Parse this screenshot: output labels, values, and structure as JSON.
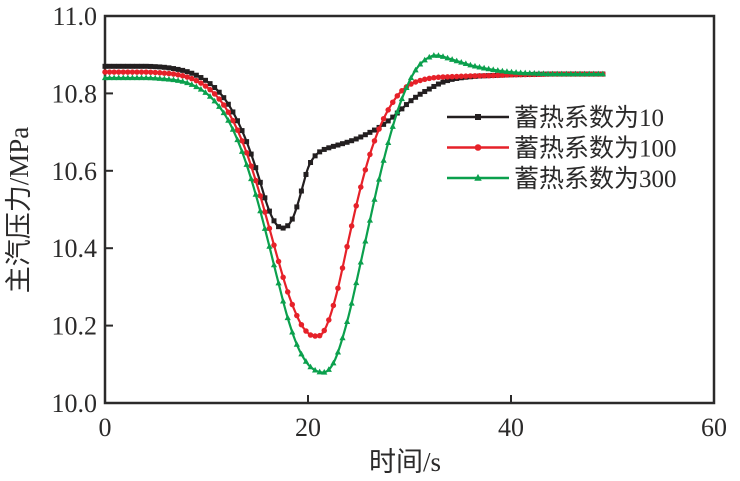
{
  "figure": {
    "background": "#ffffff",
    "frame_color": "#2b2a2a"
  },
  "chart_data": {
    "type": "line",
    "title": "",
    "xlabel": "时间/s",
    "ylabel": "主汽压力/MPa",
    "xlim": [
      0,
      60
    ],
    "ylim": [
      10.0,
      11.0
    ],
    "x_ticks": [
      0,
      20,
      40,
      60
    ],
    "x_tick_labels": [
      "0",
      "20",
      "40",
      "60"
    ],
    "y_ticks": [
      10.0,
      10.2,
      10.4,
      10.6,
      10.8,
      11.0
    ],
    "y_tick_labels": [
      "10.0",
      "10.2",
      "10.4",
      "10.6",
      "10.8",
      "11.0"
    ],
    "grid": false,
    "legend_position": "inside-upper-right",
    "series": [
      {
        "name": "蓄热系数为10",
        "color": "#231f20",
        "marker": "square",
        "points": [
          [
            0,
            10.87
          ],
          [
            2,
            10.87
          ],
          [
            4,
            10.87
          ],
          [
            5,
            10.869
          ],
          [
            6,
            10.867
          ],
          [
            7,
            10.863
          ],
          [
            8,
            10.857
          ],
          [
            9,
            10.847
          ],
          [
            10,
            10.832
          ],
          [
            11,
            10.81
          ],
          [
            12,
            10.778
          ],
          [
            13,
            10.732
          ],
          [
            14,
            10.672
          ],
          [
            15,
            10.596
          ],
          [
            16,
            10.51
          ],
          [
            16.5,
            10.478
          ],
          [
            17,
            10.458
          ],
          [
            17.3,
            10.453
          ],
          [
            17.6,
            10.452
          ],
          [
            18,
            10.458
          ],
          [
            18.5,
            10.478
          ],
          [
            19,
            10.515
          ],
          [
            19.5,
            10.562
          ],
          [
            20,
            10.607
          ],
          [
            20.5,
            10.632
          ],
          [
            21,
            10.646
          ],
          [
            21.5,
            10.654
          ],
          [
            22,
            10.659
          ],
          [
            23,
            10.667
          ],
          [
            24,
            10.675
          ],
          [
            25,
            10.685
          ],
          [
            26,
            10.698
          ],
          [
            27,
            10.712
          ],
          [
            28,
            10.731
          ],
          [
            29,
            10.754
          ],
          [
            30,
            10.778
          ],
          [
            31,
            10.797
          ],
          [
            32,
            10.812
          ],
          [
            33,
            10.826
          ],
          [
            34,
            10.835
          ],
          [
            35,
            10.84
          ],
          [
            36,
            10.843
          ],
          [
            37,
            10.845
          ],
          [
            38,
            10.846
          ],
          [
            40,
            10.848
          ],
          [
            42,
            10.849
          ],
          [
            44,
            10.85
          ],
          [
            46,
            10.85
          ],
          [
            49.3,
            10.85
          ]
        ]
      },
      {
        "name": "蓄热系数为100",
        "color": "#e62129",
        "marker": "circle",
        "points": [
          [
            0,
            10.855
          ],
          [
            2,
            10.855
          ],
          [
            4,
            10.855
          ],
          [
            5,
            10.854
          ],
          [
            6,
            10.852
          ],
          [
            7,
            10.849
          ],
          [
            8,
            10.843
          ],
          [
            9,
            10.833
          ],
          [
            10,
            10.817
          ],
          [
            11,
            10.793
          ],
          [
            12,
            10.758
          ],
          [
            13,
            10.708
          ],
          [
            14,
            10.643
          ],
          [
            15,
            10.562
          ],
          [
            16,
            10.47
          ],
          [
            17,
            10.375
          ],
          [
            18,
            10.287
          ],
          [
            19,
            10.22
          ],
          [
            19.5,
            10.196
          ],
          [
            20,
            10.181
          ],
          [
            20.5,
            10.173
          ],
          [
            21,
            10.173
          ],
          [
            21.5,
            10.183
          ],
          [
            22,
            10.211
          ],
          [
            22.5,
            10.252
          ],
          [
            23,
            10.302
          ],
          [
            24,
            10.422
          ],
          [
            25,
            10.537
          ],
          [
            26,
            10.634
          ],
          [
            27,
            10.708
          ],
          [
            28,
            10.762
          ],
          [
            29,
            10.8
          ],
          [
            30,
            10.822
          ],
          [
            31,
            10.833
          ],
          [
            32,
            10.839
          ],
          [
            33,
            10.842
          ],
          [
            34,
            10.843
          ],
          [
            36,
            10.845
          ],
          [
            38,
            10.846
          ],
          [
            40,
            10.848
          ],
          [
            42,
            10.849
          ],
          [
            44,
            10.85
          ],
          [
            46,
            10.85
          ],
          [
            49.3,
            10.85
          ]
        ]
      },
      {
        "name": "蓄热系数为300",
        "color": "#0ba04d",
        "marker": "triangle",
        "points": [
          [
            0,
            10.84
          ],
          [
            2,
            10.84
          ],
          [
            4,
            10.84
          ],
          [
            5,
            10.839
          ],
          [
            6,
            10.837
          ],
          [
            7,
            10.834
          ],
          [
            8,
            10.828
          ],
          [
            9,
            10.817
          ],
          [
            10,
            10.8
          ],
          [
            11,
            10.774
          ],
          [
            12,
            10.737
          ],
          [
            13,
            10.683
          ],
          [
            14,
            10.612
          ],
          [
            15,
            10.525
          ],
          [
            16,
            10.425
          ],
          [
            17,
            10.32
          ],
          [
            18,
            10.22
          ],
          [
            19,
            10.145
          ],
          [
            20,
            10.1
          ],
          [
            20.5,
            10.088
          ],
          [
            21,
            10.081
          ],
          [
            21.5,
            10.079
          ],
          [
            22,
            10.085
          ],
          [
            22.5,
            10.103
          ],
          [
            23,
            10.135
          ],
          [
            24,
            10.225
          ],
          [
            25,
            10.34
          ],
          [
            26,
            10.46
          ],
          [
            27,
            10.578
          ],
          [
            28,
            10.682
          ],
          [
            29,
            10.768
          ],
          [
            30,
            10.832
          ],
          [
            30.5,
            10.856
          ],
          [
            31,
            10.874
          ],
          [
            31.5,
            10.886
          ],
          [
            32,
            10.894
          ],
          [
            32.5,
            10.898
          ],
          [
            33,
            10.897
          ],
          [
            34,
            10.889
          ],
          [
            35,
            10.881
          ],
          [
            36,
            10.873
          ],
          [
            37,
            10.867
          ],
          [
            38,
            10.862
          ],
          [
            39,
            10.858
          ],
          [
            40,
            10.855
          ],
          [
            41,
            10.853
          ],
          [
            42,
            10.852
          ],
          [
            43,
            10.851
          ],
          [
            44,
            10.85
          ],
          [
            46,
            10.85
          ],
          [
            49.3,
            10.85
          ]
        ]
      }
    ]
  },
  "legend": {
    "items": [
      {
        "label": "蓄热系数为10"
      },
      {
        "label": "蓄热系数为100"
      },
      {
        "label": "蓄热系数为300"
      }
    ]
  }
}
